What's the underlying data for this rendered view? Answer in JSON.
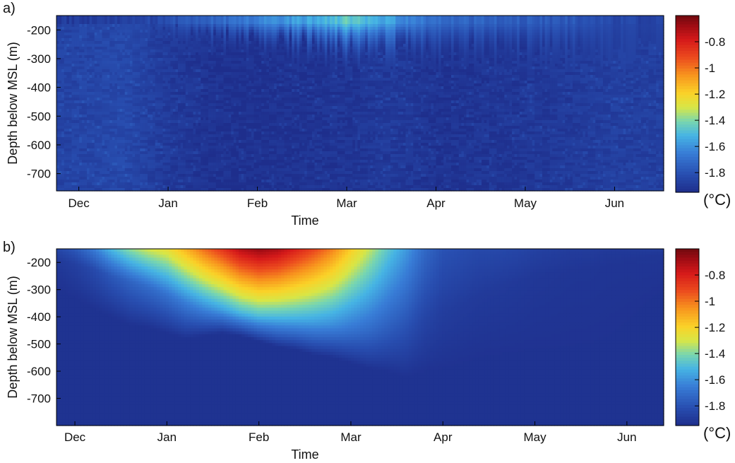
{
  "chart_data": [
    {
      "type": "heatmap",
      "panel_label": "a)",
      "xlabel": "Time",
      "ylabel": "Depth below MSL (m)",
      "x_ticks": [
        "Dec",
        "Jan",
        "Feb",
        "Mar",
        "Apr",
        "May",
        "Jun"
      ],
      "y_ticks": [
        "-200",
        "-300",
        "-400",
        "-500",
        "-600",
        "-700"
      ],
      "y_tick_values": [
        -200,
        -300,
        -400,
        -500,
        -600,
        -700
      ],
      "xlim_months": [
        -0.25,
        6.55
      ],
      "ylim": [
        -760,
        -150
      ],
      "colorbar": {
        "unit": "(°C)",
        "ticks": [
          "-0.8",
          "-1",
          "-1.2",
          "-1.4",
          "-1.6",
          "-1.8"
        ],
        "tick_values": [
          -0.8,
          -1.0,
          -1.2,
          -1.4,
          -1.6,
          -1.8
        ],
        "range": [
          -1.95,
          -0.6
        ]
      },
      "surface_series": {
        "month": [
          0.0,
          0.5,
          0.9,
          1.2,
          1.6,
          2.0,
          2.4,
          2.8,
          3.0,
          3.3,
          3.6,
          4.0,
          4.5,
          5.0,
          5.4,
          5.7,
          6.0,
          6.4
        ],
        "temperature": [
          -1.9,
          -1.88,
          -1.84,
          -1.78,
          -1.72,
          -1.64,
          -1.58,
          -1.52,
          -1.45,
          -1.52,
          -1.6,
          -1.72,
          -1.74,
          -1.76,
          -1.78,
          -1.8,
          -1.85,
          -1.86
        ],
        "mixed_layer_depth": [
          -160,
          -165,
          -190,
          -230,
          -250,
          -270,
          -270,
          -290,
          -300,
          -300,
          -290,
          -300,
          -290,
          -300,
          -300,
          -300,
          -280,
          -260
        ]
      },
      "column_structure": {
        "month": [
          0.0,
          0.5,
          1.0,
          1.5,
          2.0,
          2.5,
          3.0,
          3.5,
          4.0,
          4.5,
          5.0,
          5.5,
          6.0,
          6.5
        ],
        "deep_temperature": [
          -1.86,
          -1.84,
          -1.9,
          -1.93,
          -1.94,
          -1.93,
          -1.92,
          -1.9,
          -1.93,
          -1.92,
          -1.91,
          -1.9,
          -1.88,
          -1.88
        ]
      }
    },
    {
      "type": "heatmap",
      "panel_label": "b)",
      "xlabel": "Time",
      "ylabel": "Depth below MSL (m)",
      "x_ticks": [
        "Dec",
        "Jan",
        "Feb",
        "Mar",
        "Apr",
        "May",
        "Jun"
      ],
      "y_ticks": [
        "-200",
        "-300",
        "-400",
        "-500",
        "-600",
        "-700"
      ],
      "y_tick_values": [
        -200,
        -300,
        -400,
        -500,
        -600,
        -700
      ],
      "xlim_months": [
        -0.2,
        6.4
      ],
      "ylim": [
        -800,
        -150
      ],
      "colorbar": {
        "unit": "(°C)",
        "ticks": [
          "-0.8",
          "-1",
          "-1.2",
          "-1.4",
          "-1.6",
          "-1.8"
        ],
        "tick_values": [
          -0.8,
          -1.0,
          -1.2,
          -1.4,
          -1.6,
          -1.8
        ],
        "range": [
          -1.95,
          -0.6
        ]
      },
      "grid_x_month": [
        -0.2,
        0.0,
        0.2,
        0.4,
        0.6,
        0.8,
        1.0,
        1.2,
        1.4,
        1.6,
        1.8,
        2.0,
        2.2,
        2.4,
        2.6,
        2.8,
        3.0,
        3.2,
        3.4,
        3.6,
        3.8,
        4.0,
        4.2,
        4.4,
        4.6,
        4.8,
        5.0,
        5.2,
        5.4,
        5.6,
        5.8,
        6.0,
        6.2,
        6.4
      ],
      "grid_y_depth": [
        -150,
        -175,
        -200,
        -225,
        -250,
        -275,
        -300,
        -325,
        -350,
        -375,
        -400,
        -425,
        -450,
        -475,
        -500,
        -525,
        -550,
        -575,
        -600,
        -625,
        -650,
        -675,
        -700,
        -725,
        -750,
        -775,
        -800
      ],
      "surface_temperature": [
        -1.85,
        -1.78,
        -1.66,
        -1.5,
        -1.38,
        -1.3,
        -1.25,
        -1.12,
        -0.98,
        -0.86,
        -0.72,
        -0.66,
        -0.7,
        -0.8,
        -0.9,
        -1.02,
        -1.18,
        -1.32,
        -1.46,
        -1.58,
        -1.72,
        -1.8,
        -1.82,
        -1.84,
        -1.84,
        -1.85,
        -1.87,
        -1.88,
        -1.89,
        -1.89,
        -1.9,
        -1.9,
        -1.89,
        -1.89
      ],
      "warm_layer_depth": [
        -190,
        -205,
        -225,
        -250,
        -270,
        -290,
        -320,
        -345,
        -360,
        -372,
        -385,
        -395,
        -400,
        -410,
        -420,
        -430,
        -440,
        -450,
        -450,
        -445,
        -410,
        -380,
        -350,
        -320,
        -290,
        -270,
        -250,
        -240,
        -230,
        -220,
        -210,
        -200,
        -180,
        -170
      ],
      "influence_depth": [
        -290,
        -330,
        -370,
        -400,
        -430,
        -440,
        -460,
        -480,
        -470,
        -460,
        -470,
        -490,
        -510,
        -520,
        -540,
        -550,
        -570,
        -590,
        -600,
        -620,
        -600,
        -590,
        -570,
        -550,
        -540,
        -530,
        -520,
        -520,
        -510,
        -500,
        -480,
        -420,
        -350,
        -300
      ]
    }
  ]
}
